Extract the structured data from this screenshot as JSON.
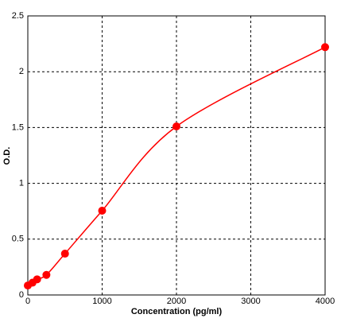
{
  "chart_data": {
    "type": "scatter",
    "xlabel": "Concentration (pg/ml)",
    "ylabel": "O.D.",
    "x": [
      0,
      62.5,
      125,
      250,
      500,
      1000,
      2000,
      4000
    ],
    "series": [
      {
        "color": "#ff0000",
        "values": [
          0.085,
          0.11,
          0.14,
          0.18,
          0.37,
          0.755,
          1.51,
          2.22
        ]
      }
    ],
    "curve": "smooth",
    "xlim": [
      0,
      4000
    ],
    "xticks": [
      0,
      1000,
      2000,
      3000,
      4000
    ],
    "ylim": [
      0,
      2.5
    ],
    "yticks": [
      0,
      0.5,
      1,
      1.5,
      2,
      2.5
    ],
    "grid": true
  }
}
